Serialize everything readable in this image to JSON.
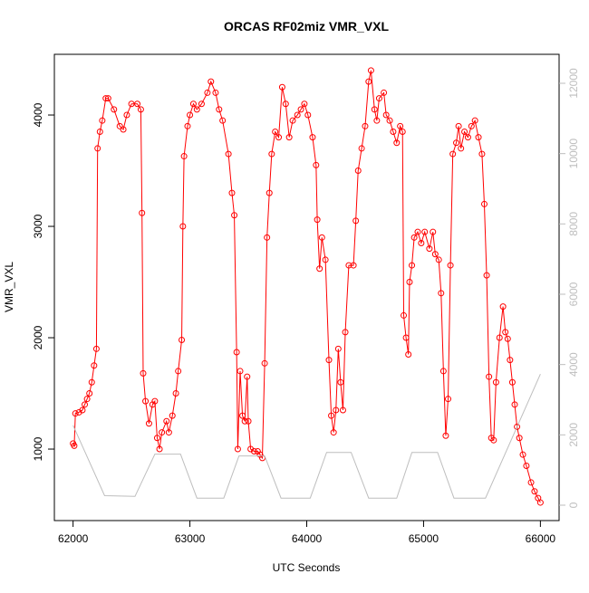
{
  "chart_data": {
    "type": "line",
    "title": "ORCAS RF02miz VMR_VXL",
    "x_label": "UTC Seconds",
    "y_label": "VMR_VXL",
    "xlim": [
      61840,
      66160
    ],
    "xticks": [
      62000,
      63000,
      64000,
      65000,
      66000
    ],
    "ylim": [
      358,
      4545
    ],
    "yticks": [
      1000,
      2000,
      3000,
      4000
    ],
    "y2lim": [
      -438,
      12824
    ],
    "y2ticks": [
      0,
      2000,
      4000,
      6000,
      8000,
      10000,
      12000
    ],
    "series": [
      {
        "color": "#ff0000",
        "marker": "circle",
        "x": [
          62000,
          62010,
          62020,
          62050,
          62080,
          62100,
          62120,
          62140,
          62160,
          62180,
          62200,
          62210,
          62230,
          62250,
          62280,
          62300,
          62350,
          62400,
          62430,
          62460,
          62500,
          62550,
          62580,
          62590,
          62600,
          62620,
          62650,
          62680,
          62700,
          62720,
          62740,
          62760,
          62800,
          62820,
          62850,
          62880,
          62900,
          62930,
          62940,
          62950,
          62980,
          63000,
          63030,
          63060,
          63100,
          63150,
          63180,
          63220,
          63250,
          63280,
          63330,
          63360,
          63380,
          63400,
          63410,
          63430,
          63450,
          63470,
          63490,
          63500,
          63520,
          63550,
          63580,
          63600,
          63620,
          63640,
          63660,
          63680,
          63700,
          63730,
          63760,
          63790,
          63820,
          63850,
          63880,
          63920,
          63950,
          63980,
          64010,
          64050,
          64080,
          64090,
          64110,
          64130,
          64160,
          64190,
          64210,
          64230,
          64250,
          64270,
          64290,
          64310,
          64330,
          64360,
          64400,
          64420,
          64440,
          64470,
          64500,
          64530,
          64550,
          64580,
          64600,
          64620,
          64660,
          64680,
          64710,
          64740,
          64770,
          64800,
          64820,
          64830,
          64850,
          64870,
          64880,
          64900,
          64920,
          64950,
          64980,
          65010,
          65050,
          65080,
          65100,
          65130,
          65150,
          65170,
          65190,
          65210,
          65230,
          65250,
          65280,
          65300,
          65320,
          65350,
          65380,
          65410,
          65440,
          65470,
          65500,
          65520,
          65540,
          65560,
          65580,
          65600,
          65620,
          65650,
          65680,
          65700,
          65720,
          65740,
          65760,
          65780,
          65800,
          65820,
          65850,
          65880,
          65920,
          65950,
          65980,
          66000
        ],
        "values": [
          1050,
          1030,
          1320,
          1330,
          1350,
          1400,
          1450,
          1500,
          1600,
          1750,
          1900,
          3700,
          3850,
          3950,
          4150,
          4150,
          4050,
          3900,
          3870,
          4000,
          4100,
          4100,
          4050,
          3120,
          1680,
          1430,
          1230,
          1400,
          1430,
          1100,
          1000,
          1150,
          1250,
          1150,
          1300,
          1500,
          1700,
          1980,
          3000,
          3630,
          3900,
          4000,
          4100,
          4050,
          4100,
          4200,
          4300,
          4200,
          4050,
          3950,
          3650,
          3300,
          3100,
          1870,
          1000,
          1700,
          1300,
          1250,
          1650,
          1250,
          1000,
          980,
          980,
          950,
          920,
          1770,
          2900,
          3300,
          3650,
          3850,
          3800,
          4250,
          4100,
          3800,
          3950,
          4000,
          4050,
          4100,
          4000,
          3800,
          3550,
          3060,
          2620,
          2900,
          2700,
          1800,
          1300,
          1150,
          1350,
          1900,
          1600,
          1350,
          2050,
          2650,
          2650,
          3050,
          3500,
          3700,
          3900,
          4300,
          4400,
          4050,
          3950,
          4150,
          4200,
          4000,
          3950,
          3850,
          3750,
          3900,
          3850,
          2200,
          2000,
          1850,
          2500,
          2650,
          2900,
          2950,
          2850,
          2950,
          2800,
          2950,
          2750,
          2700,
          2400,
          1700,
          1120,
          1450,
          2650,
          3650,
          3750,
          3900,
          3700,
          3850,
          3800,
          3900,
          3950,
          3800,
          3650,
          3200,
          2560,
          1650,
          1100,
          1080,
          1600,
          2000,
          2280,
          2050,
          1990,
          1800,
          1600,
          1400,
          1200,
          1100,
          950,
          850,
          700,
          620,
          560,
          520
        ]
      },
      {
        "color": "#bebebe",
        "axis": "y2",
        "x": [
          62000,
          62270,
          62530,
          62700,
          62920,
          63060,
          63290,
          63420,
          63640,
          63780,
          64030,
          64170,
          64380,
          64530,
          64770,
          64900,
          65120,
          65260,
          65530,
          66000
        ],
        "values": [
          2270,
          270,
          250,
          1450,
          1450,
          200,
          200,
          1400,
          1400,
          200,
          200,
          1500,
          1500,
          200,
          200,
          1500,
          1500,
          200,
          200,
          3730
        ]
      }
    ]
  }
}
